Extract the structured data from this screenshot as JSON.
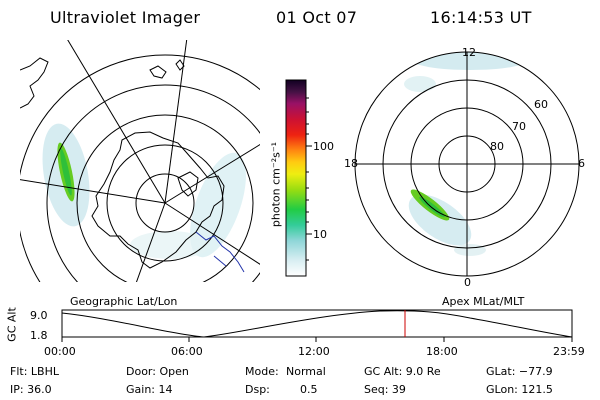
{
  "header": {
    "title": "Ultraviolet Imager",
    "date": "01 Oct 07",
    "time": "16:14:53 UT"
  },
  "colorbar": {
    "label": "photon cm⁻²s⁻¹",
    "ticks": [
      "100",
      "10"
    ]
  },
  "geo_panel": {
    "label": "Geographic Lat/Lon"
  },
  "apex_panel": {
    "label": "Apex  MLat/MLT",
    "mlt_labels": {
      "top": "12",
      "left": "18",
      "right": "6",
      "bottom": "0"
    },
    "lat_labels": [
      "60",
      "70",
      "80"
    ]
  },
  "gc_plot": {
    "ylabel": "GC Alt",
    "yticks": [
      "9.0",
      "1.8"
    ],
    "xticks": [
      "00:00",
      "06:00",
      "12:00",
      "18:00",
      "23:59"
    ]
  },
  "info": {
    "row1": {
      "filter": "Flt: LBHL",
      "door": "Door: Open",
      "mode_label": "Mode:",
      "mode_value": "Normal",
      "gcalt": "GC Alt: 9.0 Re",
      "glat": "GLat: −77.9"
    },
    "row2": {
      "ip": "IP: 36.0",
      "gain": "Gain: 14",
      "dsp_label": "Dsp:",
      "dsp_value": "0.5",
      "seq": "Seq: 39",
      "glon": "GLon: 121.5"
    }
  },
  "colors": {
    "emission_bright": "#66cc22",
    "emission_dim": "#bfe6ec",
    "time_marker": "#cc0000",
    "coast": "#000000"
  }
}
